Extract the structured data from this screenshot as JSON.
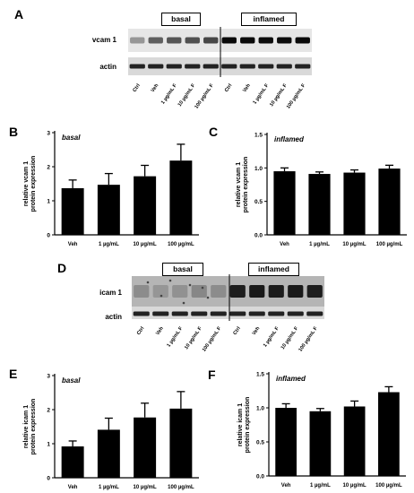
{
  "panels": {
    "A": "A",
    "B": "B",
    "C": "C",
    "D": "D",
    "E": "E",
    "F": "F"
  },
  "blot_vcam": {
    "group_basal": "basal",
    "group_inflamed": "inflamed",
    "target_label": "vcam 1",
    "control_label": "actin",
    "lanes": [
      "Ctrl",
      "Veh",
      "1 µg/mL F",
      "10 µg/mL F",
      "100 µg/mL F",
      "Ctrl",
      "Veh",
      "1 µg/mL F",
      "10 µg/mL F",
      "100 µg/mL F"
    ]
  },
  "blot_icam": {
    "group_basal": "basal",
    "group_inflamed": "inflamed",
    "target_label": "icam 1",
    "control_label": "actin",
    "lanes": [
      "Ctrl",
      "Veh",
      "1 µg/mL F",
      "10 µg/mL F",
      "100 µg/mL F",
      "Ctrl",
      "Veh",
      "1 µg/mL F",
      "10 µg/mL F",
      "100 µg/mL F"
    ]
  },
  "chart_data": [
    {
      "id": "B",
      "type": "bar",
      "title": "basal",
      "ylabel_line1": "relative vcam 1",
      "ylabel_line2": "protein expression",
      "categories": [
        "Veh",
        "1  µg/mL",
        "10  µg/mL",
        "100  µg/mL"
      ],
      "values": [
        1.37,
        1.47,
        1.72,
        2.18
      ],
      "errors": [
        0.24,
        0.33,
        0.32,
        0.48
      ],
      "ylim": [
        0,
        3
      ],
      "yticks": [
        0,
        1,
        2,
        3
      ]
    },
    {
      "id": "C",
      "type": "bar",
      "title": "inflamed",
      "ylabel_line1": "relative vcam 1",
      "ylabel_line2": "protein expression",
      "categories": [
        "Veh",
        "1  µg/mL",
        "10  µg/mL",
        "100  µg/mL"
      ],
      "values": [
        0.95,
        0.91,
        0.93,
        0.99
      ],
      "errors": [
        0.05,
        0.03,
        0.04,
        0.05
      ],
      "ylim": [
        0,
        1.5
      ],
      "yticks": [
        0.0,
        0.5,
        1.0,
        1.5
      ]
    },
    {
      "id": "E",
      "type": "bar",
      "title": "basal",
      "ylabel_line1": "relative icam 1",
      "ylabel_line2": "protein expression",
      "categories": [
        "Veh",
        "1  µg/mL",
        "10  µg/mL",
        "100  µg/mL"
      ],
      "values": [
        0.92,
        1.41,
        1.77,
        2.03
      ],
      "errors": [
        0.16,
        0.34,
        0.42,
        0.5
      ],
      "ylim": [
        0,
        3
      ],
      "yticks": [
        0,
        1,
        2,
        3
      ]
    },
    {
      "id": "F",
      "type": "bar",
      "title": "inflamed",
      "ylabel_line1": "relative icam 1",
      "ylabel_line2": "protein expression",
      "categories": [
        "Veh",
        "1  µg/mL",
        "10  µg/mL",
        "100  µg/mL"
      ],
      "values": [
        1.0,
        0.95,
        1.02,
        1.23
      ],
      "errors": [
        0.06,
        0.04,
        0.08,
        0.08
      ],
      "ylim": [
        0,
        1.5
      ],
      "yticks": [
        0.0,
        0.5,
        1.0,
        1.5
      ]
    }
  ]
}
